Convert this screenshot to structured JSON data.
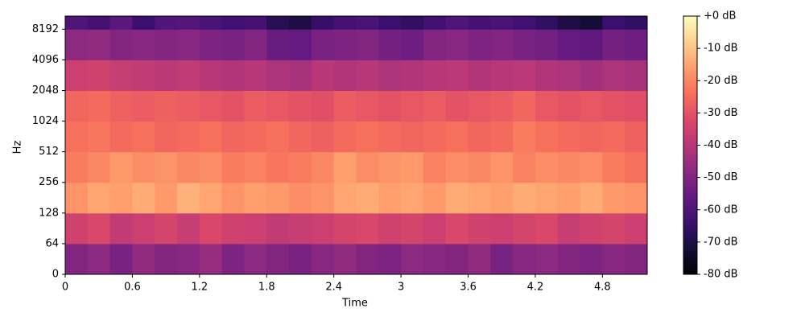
{
  "chart_data": {
    "type": "heatmap",
    "xlabel": "Time",
    "ylabel": "Hz",
    "xlim": [
      0,
      5.2
    ],
    "xticks": [
      0,
      0.6,
      1.2,
      1.8,
      2.4,
      3,
      3.6,
      4.2,
      4.8
    ],
    "ylim": [
      0,
      11025
    ],
    "yscale": "symlog",
    "linthresh": 64,
    "yticks": [
      0,
      64,
      128,
      256,
      512,
      1024,
      2048,
      4096,
      8192
    ],
    "xbins": [
      0,
      0.2,
      0.4,
      0.6,
      0.8,
      1.0,
      1.2,
      1.4,
      1.6,
      1.8,
      2.0,
      2.2,
      2.4,
      2.6,
      2.8,
      3.0,
      3.2,
      3.4,
      3.6,
      3.8,
      4.0,
      4.2,
      4.4,
      4.6,
      4.8,
      5.0,
      5.2
    ],
    "ybins": [
      0,
      64,
      128,
      256,
      512,
      1024,
      2048,
      4096,
      8192,
      11025
    ],
    "values": [
      [
        -50,
        -48,
        -52,
        -47,
        -50,
        -49,
        -46,
        -51,
        -48,
        -50,
        -52,
        -49,
        -47,
        -50,
        -51,
        -48,
        -49,
        -50,
        -47,
        -52,
        -49,
        -48,
        -50,
        -51,
        -49,
        -50
      ],
      [
        -35,
        -33,
        -38,
        -36,
        -34,
        -37,
        -33,
        -35,
        -36,
        -38,
        -37,
        -36,
        -34,
        -33,
        -35,
        -34,
        -36,
        -33,
        -35,
        -36,
        -34,
        -33,
        -37,
        -35,
        -34,
        -36
      ],
      [
        -18,
        -15,
        -16,
        -14,
        -17,
        -13,
        -15,
        -18,
        -16,
        -17,
        -19,
        -18,
        -15,
        -14,
        -16,
        -15,
        -17,
        -14,
        -15,
        -16,
        -14,
        -15,
        -16,
        -14,
        -17,
        -18
      ],
      [
        -22,
        -20,
        -17,
        -19,
        -18,
        -20,
        -19,
        -22,
        -21,
        -23,
        -22,
        -20,
        -16,
        -19,
        -18,
        -17,
        -21,
        -19,
        -20,
        -18,
        -21,
        -19,
        -20,
        -19,
        -22,
        -24
      ],
      [
        -24,
        -23,
        -25,
        -24,
        -26,
        -25,
        -24,
        -26,
        -25,
        -24,
        -26,
        -27,
        -25,
        -24,
        -25,
        -26,
        -25,
        -24,
        -26,
        -25,
        -22,
        -24,
        -25,
        -26,
        -25,
        -27
      ],
      [
        -26,
        -25,
        -27,
        -28,
        -27,
        -28,
        -29,
        -30,
        -28,
        -29,
        -30,
        -31,
        -28,
        -29,
        -30,
        -29,
        -28,
        -30,
        -29,
        -28,
        -26,
        -29,
        -30,
        -29,
        -30,
        -31
      ],
      [
        -36,
        -35,
        -37,
        -38,
        -39,
        -38,
        -40,
        -41,
        -40,
        -42,
        -43,
        -40,
        -41,
        -40,
        -42,
        -41,
        -40,
        -39,
        -41,
        -40,
        -39,
        -41,
        -42,
        -44,
        -42,
        -43
      ],
      [
        -48,
        -47,
        -50,
        -49,
        -50,
        -49,
        -51,
        -52,
        -50,
        -55,
        -56,
        -52,
        -51,
        -50,
        -53,
        -54,
        -50,
        -49,
        -51,
        -50,
        -52,
        -53,
        -56,
        -57,
        -53,
        -54
      ],
      [
        -60,
        -62,
        -58,
        -64,
        -60,
        -59,
        -61,
        -63,
        -62,
        -68,
        -70,
        -65,
        -62,
        -61,
        -64,
        -66,
        -63,
        -60,
        -62,
        -61,
        -63,
        -66,
        -70,
        -72,
        -64,
        -66
      ]
    ],
    "colormap": "magma",
    "clim": [
      -80,
      0
    ],
    "cticks": [
      {
        "value": 0,
        "label": "+0 dB"
      },
      {
        "value": -10,
        "label": "-10 dB"
      },
      {
        "value": -20,
        "label": "-20 dB"
      },
      {
        "value": -30,
        "label": "-30 dB"
      },
      {
        "value": -40,
        "label": "-40 dB"
      },
      {
        "value": -50,
        "label": "-50 dB"
      },
      {
        "value": -60,
        "label": "-60 dB"
      },
      {
        "value": -70,
        "label": "-70 dB"
      },
      {
        "value": -80,
        "label": "-80 dB"
      }
    ]
  }
}
